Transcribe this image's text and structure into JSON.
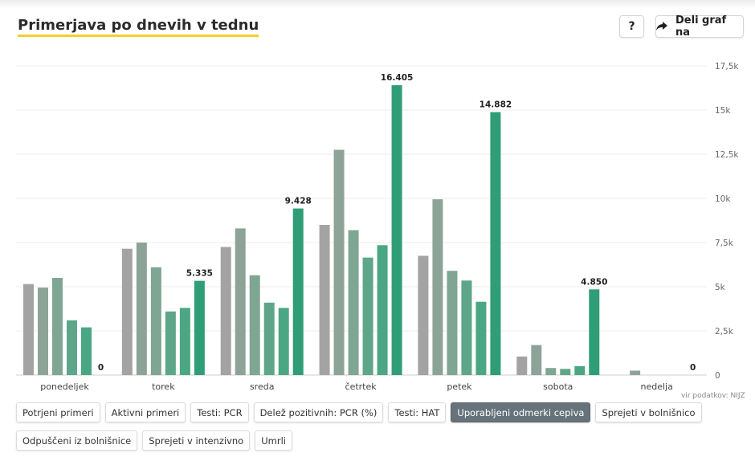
{
  "header": {
    "title": "Primerjava po dnevih v tednu",
    "help_label": "?",
    "share_label": "Deli graf na"
  },
  "source_label": "vir podatkov: NIJZ",
  "filter_buttons": [
    {
      "label": "Potrjeni primeri",
      "active": false
    },
    {
      "label": "Aktivni primeri",
      "active": false
    },
    {
      "label": "Testi: PCR",
      "active": false
    },
    {
      "label": "Delež pozitivnih: PCR (%)",
      "active": false
    },
    {
      "label": "Testi: HAT",
      "active": false
    },
    {
      "label": "Uporabljeni odmerki cepiva",
      "active": true
    },
    {
      "label": "Sprejeti v bolnišnico",
      "active": false
    },
    {
      "label": "Odpuščeni iz bolnišnice",
      "active": false
    },
    {
      "label": "Sprejeti v intenzivno",
      "active": false
    },
    {
      "label": "Umrli",
      "active": false
    }
  ],
  "chart_data": {
    "type": "bar",
    "categories": [
      "ponedeljek",
      "torek",
      "sreda",
      "četrtek",
      "petek",
      "sobota",
      "nedelja"
    ],
    "ylim": [
      0,
      17500
    ],
    "yticks": [
      0,
      2500,
      5000,
      7500,
      10000,
      12500,
      15000,
      17500
    ],
    "ytick_labels": [
      "0",
      "2,5k",
      "5k",
      "7,5k",
      "10k",
      "12,5k",
      "15k",
      "17,5k"
    ],
    "y_axis_position": "right",
    "grid": true,
    "series": [
      {
        "color": "#a3a3a3",
        "values": [
          5150,
          7150,
          7250,
          8500,
          6750,
          1050,
          0
        ]
      },
      {
        "color": "#8ea398",
        "values": [
          4950,
          7500,
          8300,
          12750,
          9950,
          1700,
          250
        ]
      },
      {
        "color": "#7ea692",
        "values": [
          5500,
          6100,
          5650,
          8200,
          5900,
          400,
          0
        ]
      },
      {
        "color": "#5ea68a",
        "values": [
          3100,
          3600,
          4100,
          6650,
          5350,
          350,
          0
        ]
      },
      {
        "color": "#4ba783",
        "values": [
          2700,
          3800,
          3800,
          7350,
          4150,
          500,
          0
        ]
      },
      {
        "color": "#2f9e76",
        "values": [
          0,
          5335,
          9428,
          16405,
          14882,
          4850,
          0
        ]
      }
    ],
    "highlight_series": 5,
    "data_labels": [
      "0",
      "5.335",
      "9.428",
      "16.405",
      "14.882",
      "4.850",
      "0"
    ]
  }
}
